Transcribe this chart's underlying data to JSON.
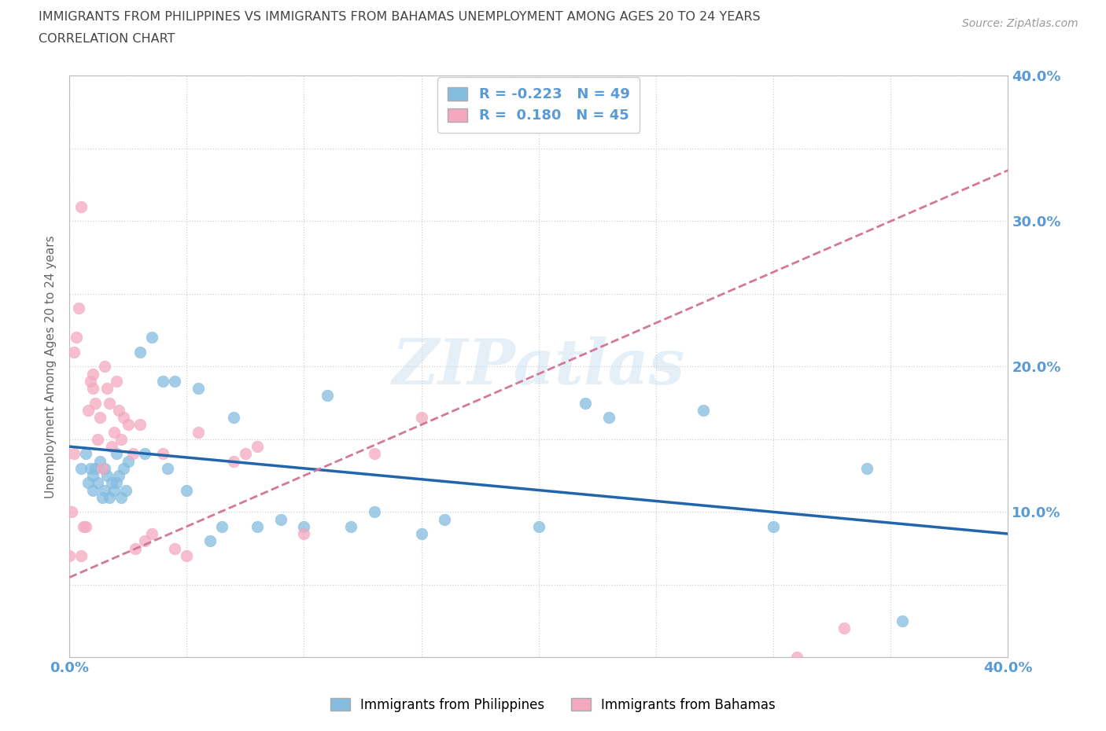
{
  "title_line1": "IMMIGRANTS FROM PHILIPPINES VS IMMIGRANTS FROM BAHAMAS UNEMPLOYMENT AMONG AGES 20 TO 24 YEARS",
  "title_line2": "CORRELATION CHART",
  "source": "Source: ZipAtlas.com",
  "ylabel_label": "Unemployment Among Ages 20 to 24 years",
  "xlim": [
    0.0,
    0.4
  ],
  "ylim": [
    0.0,
    0.4
  ],
  "xticks": [
    0.0,
    0.05,
    0.1,
    0.15,
    0.2,
    0.25,
    0.3,
    0.35,
    0.4
  ],
  "yticks": [
    0.0,
    0.05,
    0.1,
    0.15,
    0.2,
    0.25,
    0.3,
    0.35,
    0.4
  ],
  "philippines_R": -0.223,
  "philippines_N": 49,
  "bahamas_R": 0.18,
  "bahamas_N": 45,
  "philippines_color": "#85bde0",
  "bahamas_color": "#f4a8c0",
  "philippines_line_color": "#2166ac",
  "bahamas_line_color": "#d4789a",
  "philippines_scatter_x": [
    0.005,
    0.007,
    0.008,
    0.009,
    0.01,
    0.01,
    0.011,
    0.012,
    0.013,
    0.014,
    0.015,
    0.015,
    0.016,
    0.017,
    0.018,
    0.019,
    0.02,
    0.02,
    0.021,
    0.022,
    0.023,
    0.024,
    0.025,
    0.03,
    0.032,
    0.035,
    0.04,
    0.042,
    0.045,
    0.05,
    0.055,
    0.06,
    0.065,
    0.07,
    0.08,
    0.09,
    0.1,
    0.11,
    0.12,
    0.13,
    0.15,
    0.16,
    0.2,
    0.22,
    0.23,
    0.27,
    0.3,
    0.34,
    0.355
  ],
  "philippines_scatter_y": [
    0.13,
    0.14,
    0.12,
    0.13,
    0.125,
    0.115,
    0.13,
    0.12,
    0.135,
    0.11,
    0.13,
    0.115,
    0.125,
    0.11,
    0.12,
    0.115,
    0.14,
    0.12,
    0.125,
    0.11,
    0.13,
    0.115,
    0.135,
    0.21,
    0.14,
    0.22,
    0.19,
    0.13,
    0.19,
    0.115,
    0.185,
    0.08,
    0.09,
    0.165,
    0.09,
    0.095,
    0.09,
    0.18,
    0.09,
    0.1,
    0.085,
    0.095,
    0.09,
    0.175,
    0.165,
    0.17,
    0.09,
    0.13,
    0.025
  ],
  "bahamas_scatter_x": [
    0.0,
    0.001,
    0.002,
    0.002,
    0.003,
    0.004,
    0.005,
    0.005,
    0.006,
    0.007,
    0.008,
    0.009,
    0.01,
    0.01,
    0.011,
    0.012,
    0.013,
    0.014,
    0.015,
    0.016,
    0.017,
    0.018,
    0.019,
    0.02,
    0.021,
    0.022,
    0.023,
    0.025,
    0.027,
    0.028,
    0.03,
    0.032,
    0.035,
    0.04,
    0.045,
    0.05,
    0.055,
    0.07,
    0.075,
    0.08,
    0.1,
    0.13,
    0.15,
    0.31,
    0.33
  ],
  "bahamas_scatter_y": [
    0.07,
    0.1,
    0.14,
    0.21,
    0.22,
    0.24,
    0.31,
    0.07,
    0.09,
    0.09,
    0.17,
    0.19,
    0.185,
    0.195,
    0.175,
    0.15,
    0.165,
    0.13,
    0.2,
    0.185,
    0.175,
    0.145,
    0.155,
    0.19,
    0.17,
    0.15,
    0.165,
    0.16,
    0.14,
    0.075,
    0.16,
    0.08,
    0.085,
    0.14,
    0.075,
    0.07,
    0.155,
    0.135,
    0.14,
    0.145,
    0.085,
    0.14,
    0.165,
    0.0,
    0.02
  ],
  "watermark_text": "ZIPatlas",
  "background_color": "#ffffff",
  "grid_color": "#d0d0d0",
  "title_color": "#444444",
  "axis_tick_color": "#5b9bd5",
  "legend_text_color": "#5b9bd5",
  "ylabel_color": "#666666"
}
